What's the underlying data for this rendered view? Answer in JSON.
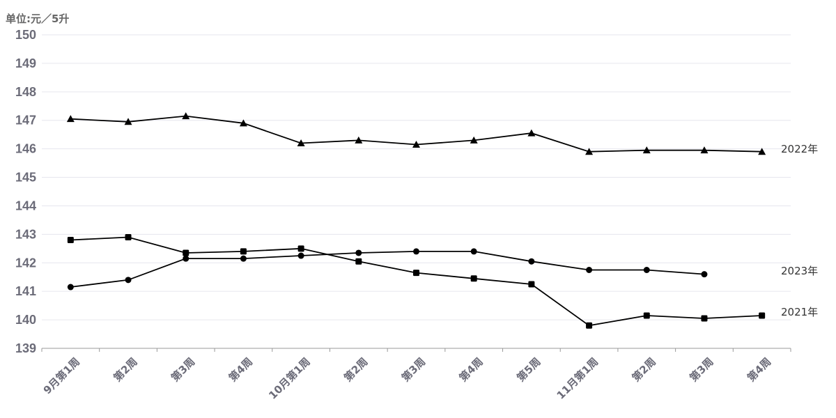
{
  "chart_data": {
    "type": "line",
    "ylabel": "单位:元／5升",
    "ylim": [
      139,
      150
    ],
    "yticks": [
      139,
      140,
      141,
      142,
      143,
      144,
      145,
      146,
      147,
      148,
      149,
      150
    ],
    "categories": [
      "9月第1周",
      "第2周",
      "第3周",
      "第4周",
      "10月第1周",
      "第2周",
      "第3周",
      "第4周",
      "第5周",
      "11月第1周",
      "第2周",
      "第3周",
      "第4周"
    ],
    "grid": true,
    "series": [
      {
        "name": "2022年",
        "marker": "triangle",
        "color": "#000000",
        "values": [
          147.05,
          146.95,
          147.15,
          146.9,
          146.2,
          146.3,
          146.15,
          146.3,
          146.55,
          145.9,
          145.95,
          145.95,
          145.9
        ]
      },
      {
        "name": "2023年",
        "marker": "circle",
        "color": "#000000",
        "values": [
          141.15,
          141.4,
          142.15,
          142.15,
          142.25,
          142.35,
          142.4,
          142.4,
          142.05,
          141.75,
          141.75,
          141.6,
          null
        ]
      },
      {
        "name": "2021年",
        "marker": "square",
        "color": "#000000",
        "values": [
          142.8,
          142.9,
          142.35,
          142.4,
          142.5,
          142.05,
          141.65,
          141.45,
          141.25,
          139.8,
          140.15,
          140.05,
          140.15
        ]
      }
    ]
  }
}
